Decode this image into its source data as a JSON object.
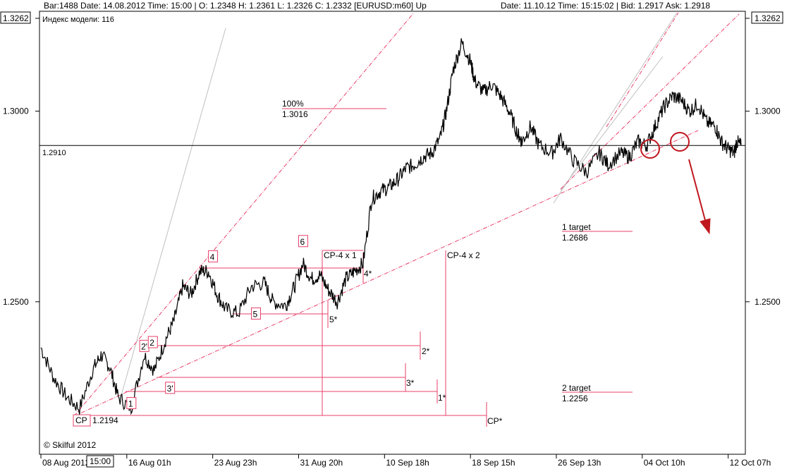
{
  "header": {
    "bar_info": "Bar:1488 Date: 14.08.2012 Time: 15:00 | O: 1.2348 H: 1.2361 L: 1.2326 C: 1.2332 [EURUSD:m60] Up",
    "datetime_info": "Date: 11.10.12 Time: 15:15:02 | Bid: 1.2917 Ask: 1.2918",
    "model_index": "Индекс модели: 116"
  },
  "copyright": "© Skilful 2012",
  "cursor_time": "15:00",
  "colors": {
    "background": "#ffffff",
    "price": "#000000",
    "lines": "#e8406a",
    "arrow": "#c0171f",
    "guide": "#c0c0c0"
  },
  "chart_data": {
    "type": "line",
    "symbol": "EURUSD",
    "timeframe": "H1",
    "ylim": [
      1.21,
      1.3262
    ],
    "y_ticks": [
      "1.3262",
      "1.3000",
      "1.2500"
    ],
    "x_ticks": [
      "08 Aug 2012",
      "16 Aug 01h",
      "23 Aug 23h",
      "31 Aug 20h",
      "10 Sep 18h",
      "18 Sep 15h",
      "26 Sep 13h",
      "04 Oct 10h",
      "12 Oct 07h"
    ],
    "x_tick_values": [
      0,
      1,
      2,
      3,
      4,
      5,
      6,
      7,
      8
    ],
    "x_visible_range": [
      0,
      8.2
    ],
    "current_price": {
      "label": "1.2910",
      "value": 1.291
    },
    "series": [
      {
        "values": [
          [
            0,
            1.238
          ],
          [
            0.15,
            1.23
          ],
          [
            0.3,
            1.225
          ],
          [
            0.45,
            1.222
          ],
          [
            0.6,
            1.232
          ],
          [
            0.7,
            1.236
          ],
          [
            0.8,
            1.233
          ],
          [
            0.9,
            1.225
          ],
          [
            1.05,
            1.222
          ],
          [
            1.2,
            1.236
          ],
          [
            1.32,
            1.232
          ],
          [
            1.45,
            1.24
          ],
          [
            1.55,
            1.245
          ],
          [
            1.65,
            1.254
          ],
          [
            1.75,
            1.252
          ],
          [
            1.85,
            1.258
          ],
          [
            1.95,
            1.258
          ],
          [
            2.05,
            1.252
          ],
          [
            2.15,
            1.248
          ],
          [
            2.3,
            1.247
          ],
          [
            2.45,
            1.254
          ],
          [
            2.6,
            1.255
          ],
          [
            2.7,
            1.25
          ],
          [
            2.85,
            1.249
          ],
          [
            2.95,
            1.254
          ],
          [
            3.05,
            1.26
          ],
          [
            3.15,
            1.256
          ],
          [
            3.25,
            1.257
          ],
          [
            3.35,
            1.253
          ],
          [
            3.45,
            1.25
          ],
          [
            3.55,
            1.256
          ],
          [
            3.65,
            1.258
          ],
          [
            3.75,
            1.26
          ],
          [
            3.85,
            1.277
          ],
          [
            3.95,
            1.279
          ],
          [
            4.05,
            1.28
          ],
          [
            4.15,
            1.282
          ],
          [
            4.25,
            1.285
          ],
          [
            4.35,
            1.286
          ],
          [
            4.45,
            1.288
          ],
          [
            4.55,
            1.289
          ],
          [
            4.65,
            1.293
          ],
          [
            4.72,
            1.3
          ],
          [
            4.8,
            1.311
          ],
          [
            4.9,
            1.318
          ],
          [
            5.0,
            1.313
          ],
          [
            5.05,
            1.308
          ],
          [
            5.15,
            1.305
          ],
          [
            5.25,
            1.307
          ],
          [
            5.35,
            1.304
          ],
          [
            5.45,
            1.3
          ],
          [
            5.55,
            1.294
          ],
          [
            5.6,
            1.292
          ],
          [
            5.7,
            1.296
          ],
          [
            5.8,
            1.291
          ],
          [
            5.95,
            1.289
          ],
          [
            6.05,
            1.293
          ],
          [
            6.2,
            1.287
          ],
          [
            6.35,
            1.284
          ],
          [
            6.5,
            1.289
          ],
          [
            6.6,
            1.286
          ],
          [
            6.75,
            1.289
          ],
          [
            6.85,
            1.288
          ],
          [
            6.95,
            1.292
          ],
          [
            7.05,
            1.291
          ],
          [
            7.15,
            1.296
          ],
          [
            7.25,
            1.301
          ],
          [
            7.35,
            1.304
          ],
          [
            7.45,
            1.303
          ],
          [
            7.55,
            1.3
          ],
          [
            7.65,
            1.302
          ],
          [
            7.75,
            1.297
          ],
          [
            7.85,
            1.296
          ],
          [
            7.92,
            1.292
          ],
          [
            8.0,
            1.29
          ],
          [
            8.07,
            1.289
          ],
          [
            8.1,
            1.292
          ],
          [
            8.15,
            1.291
          ]
        ]
      }
    ],
    "annotations": {
      "wave_labels": [
        {
          "label": "1",
          "x": 1.0,
          "y": 1.2225
        },
        {
          "label": "2'",
          "x": 1.15,
          "y": 1.2375
        },
        {
          "label": "2",
          "x": 1.25,
          "y": 1.2385
        },
        {
          "label": "3'",
          "x": 1.45,
          "y": 1.2265
        },
        {
          "label": "4",
          "x": 1.95,
          "y": 1.261
        },
        {
          "label": "5",
          "x": 2.45,
          "y": 1.246
        },
        {
          "label": "6",
          "x": 3.0,
          "y": 1.265
        }
      ],
      "targets": [
        {
          "name": "100%",
          "value_label": "1.3016",
          "value": 1.3016,
          "x_from": 2.55,
          "x_to": 4.25
        },
        {
          "name": "1 target",
          "value_label": "1.2686",
          "value": 1.2686,
          "x_from": 6.5,
          "x_to": 7.35
        },
        {
          "name": "2 target",
          "value_label": "1.2256",
          "value": 1.2256,
          "x_from": 6.5,
          "x_to": 7.35
        }
      ],
      "level_labels": [
        "CP",
        "1.2194",
        "CP*",
        "1*",
        "2*",
        "3*",
        "4*",
        "5*",
        "CP-4 x 1",
        "CP-4 x 2"
      ],
      "cp_value": 1.2194
    }
  }
}
